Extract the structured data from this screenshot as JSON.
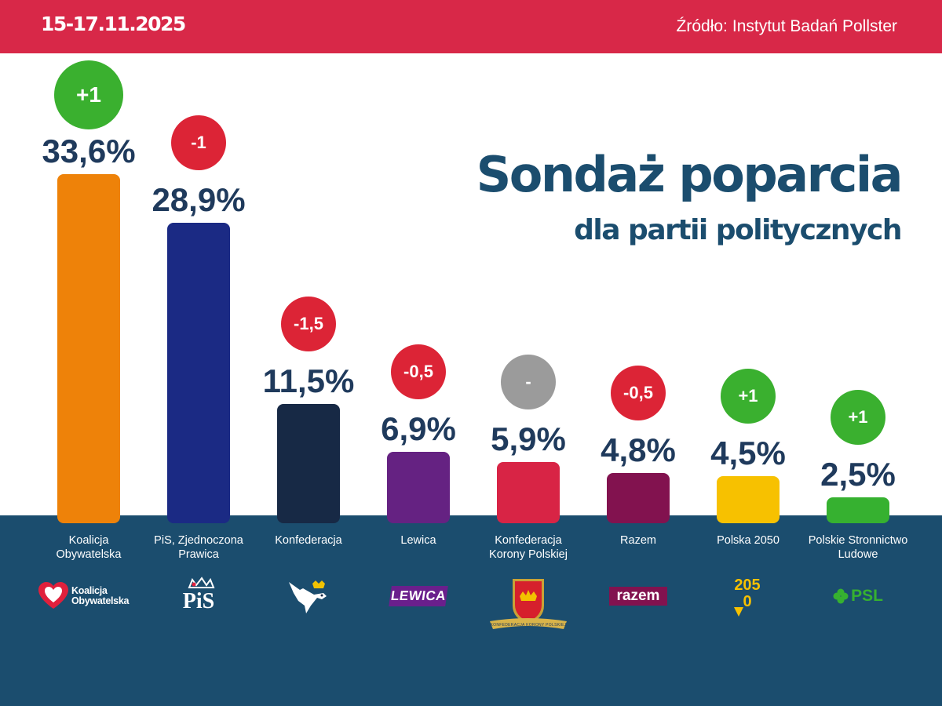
{
  "header": {
    "date": "15-17.11.2025",
    "source_label": "Źródło:",
    "source_name": "Instytut Badań Pollster"
  },
  "headline": {
    "title": "Sondaż poparcia",
    "subtitle": "dla partii politycznych"
  },
  "colors": {
    "topbar": "#d82848",
    "bottom_band": "#1b4d6e",
    "title": "#1b4d6e",
    "value_text": "#1f3a5c",
    "change_up": "#3ab02f",
    "change_down": "#dc2436",
    "change_none": "#9b9b9b"
  },
  "chart_data": {
    "type": "bar",
    "title": "Sondaż poparcia dla partii politycznych",
    "unit": "%",
    "ylim": [
      0,
      36
    ],
    "grid": false,
    "categories": [
      "Koalicja Obywatelska",
      "PiS, Zjednoczona Prawica",
      "Konfederacja",
      "Lewica",
      "Konfederacja Korony Polskiej",
      "Razem",
      "Polska 2050",
      "Polskie Stronnictwo Ludowe"
    ],
    "values": [
      33.6,
      28.9,
      11.5,
      6.9,
      5.9,
      4.8,
      4.5,
      2.5
    ],
    "value_labels": [
      "33,6%",
      "28,9%",
      "11,5%",
      "6,9%",
      "5,9%",
      "4,8%",
      "4,5%",
      "2,5%"
    ],
    "change_labels": [
      "+1",
      "-1",
      "-1,5",
      "-0,5",
      "-",
      "-0,5",
      "+1",
      "+1"
    ],
    "change_direction": [
      "up",
      "down",
      "down",
      "down",
      "none",
      "down",
      "up",
      "up"
    ],
    "bar_colors": [
      "#ee8209",
      "#1b2a84",
      "#172945",
      "#652282",
      "#d82445",
      "#82124f",
      "#f7c100",
      "#36b130"
    ],
    "category_label_lines": [
      [
        "Koalicja",
        "Obywatelska"
      ],
      [
        "PiS, Zjednoczona",
        "Prawica"
      ],
      [
        "Konfederacja"
      ],
      [
        "Lewica"
      ],
      [
        "Konfederacja",
        "Korony Polskiej"
      ],
      [
        "Razem"
      ],
      [
        "Polska 2050"
      ],
      [
        "Polskie Stronnictwo",
        "Ludowe"
      ]
    ]
  },
  "logos": [
    {
      "icon": "heart-logo-icon",
      "text_lines": [
        "Koalicja",
        "Obywatelska"
      ]
    },
    {
      "icon": "crown-logo-icon",
      "text": "PiS"
    },
    {
      "icon": "eagle-logo-icon"
    },
    {
      "icon": "lewica-logo-icon",
      "text": "LEWICA"
    },
    {
      "icon": "crest-logo-icon",
      "text": "KONFEDERACJA KORONY POLSKIEJ"
    },
    {
      "icon": "razem-logo-icon",
      "text": "razem"
    },
    {
      "icon": "polska2050-logo-icon",
      "text": "2050"
    },
    {
      "icon": "clover-logo-icon",
      "text": "PSL"
    }
  ]
}
